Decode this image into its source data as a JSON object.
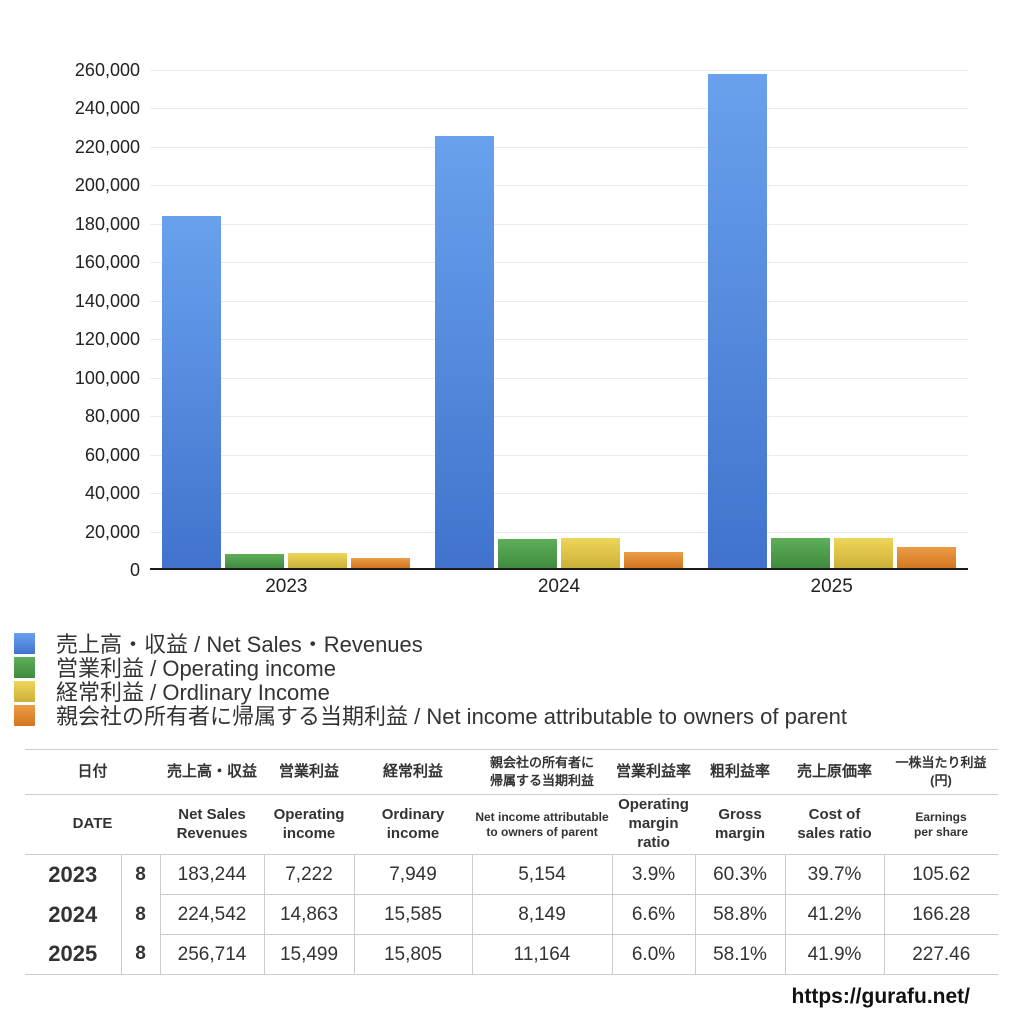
{
  "chart_data": {
    "type": "bar",
    "categories": [
      "2023",
      "2024",
      "2025"
    ],
    "series": [
      {
        "key": "net-sales",
        "name": "売上高・収益 / Net Sales・Revenues",
        "color_top": "#69a1ed",
        "color_bottom": "#4173cd",
        "values": [
          183244,
          224542,
          256714
        ]
      },
      {
        "key": "operating-income",
        "name": "営業利益 / Operating income",
        "color_top": "#5fae59",
        "color_bottom": "#3f8c3e",
        "values": [
          7222,
          14863,
          15499
        ]
      },
      {
        "key": "ordinary-income",
        "name": "経常利益 / Ordlinary Income",
        "color_top": "#eed65a",
        "color_bottom": "#ccb038",
        "values": [
          7949,
          15585,
          15805
        ]
      },
      {
        "key": "net-income",
        "name": "親会社の所有者に帰属する当期利益 / Net income attributable to owners of parent",
        "color_top": "#eb9c47",
        "color_bottom": "#d3761f",
        "values": [
          5154,
          8149,
          11164
        ]
      }
    ],
    "ylim": [
      0,
      260000
    ],
    "ytick_step": 20000,
    "grid": true,
    "legend_position": "below-left",
    "title": "",
    "xlabel": "",
    "ylabel": ""
  },
  "table": {
    "header_jp": [
      "日付",
      "売上高・収益",
      "営業利益",
      "経常利益",
      "親会社の所有者に\n帰属する当期利益",
      "営業利益率",
      "粗利益率",
      "売上原価率",
      "一株当たり利益\n(円)"
    ],
    "header_en": [
      "DATE",
      "Net Sales\nRevenues",
      "Operating\nincome",
      "Ordinary\nincome",
      "Net income attributable\nto owners of parent",
      "Operating\nmargin\nratio",
      "Gross\nmargin",
      "Cost of\nsales ratio",
      "Earnings\nper share"
    ],
    "rows": [
      {
        "year": "2023",
        "month": "8",
        "values": [
          "183,244",
          "7,222",
          "7,949",
          "5,154",
          "3.9%",
          "60.3%",
          "39.7%",
          "105.62"
        ]
      },
      {
        "year": "2024",
        "month": "8",
        "values": [
          "224,542",
          "14,863",
          "15,585",
          "8,149",
          "6.6%",
          "58.8%",
          "41.2%",
          "166.28"
        ]
      },
      {
        "year": "2025",
        "month": "8",
        "values": [
          "256,714",
          "15,499",
          "15,805",
          "11,164",
          "6.0%",
          "58.1%",
          "41.9%",
          "227.46"
        ]
      }
    ]
  },
  "footer": {
    "url": "https://gurafu.net/"
  }
}
